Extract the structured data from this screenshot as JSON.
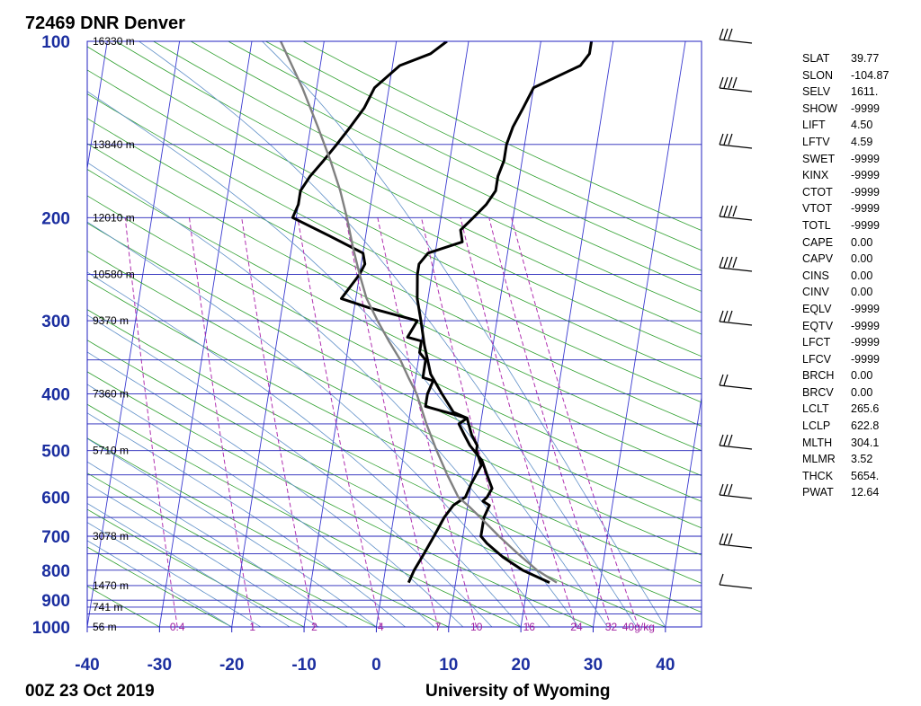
{
  "header": {
    "station": "72469 DNR Denver",
    "time": "00Z 23 Oct 2019",
    "source": "University of Wyoming"
  },
  "chart_data": {
    "type": "line",
    "x_axis": {
      "range": [
        -40,
        45
      ],
      "ticks": [
        -40,
        -30,
        -20,
        -10,
        0,
        10,
        20,
        30,
        40
      ]
    },
    "y_axis": {
      "log_scale": true,
      "range": [
        1000,
        100
      ],
      "ticks": [
        100,
        200,
        300,
        400,
        500,
        600,
        700,
        800,
        900,
        1000
      ]
    },
    "height_labels": [
      {
        "p": 100,
        "text": "16330 m"
      },
      {
        "p": 150,
        "text": "13840 m"
      },
      {
        "p": 200,
        "text": "12010 m"
      },
      {
        "p": 250,
        "text": "10580 m"
      },
      {
        "p": 300,
        "text": "9370 m"
      },
      {
        "p": 400,
        "text": "7360 m"
      },
      {
        "p": 500,
        "text": "5710 m"
      },
      {
        "p": 700,
        "text": "3078 m"
      },
      {
        "p": 850,
        "text": "1470 m"
      },
      {
        "p": 925,
        "text": "741 m"
      },
      {
        "p": 1000,
        "text": "56 m"
      }
    ],
    "mixing_ratio_labels": [
      {
        "w": 0.4,
        "text": "0.4"
      },
      {
        "w": 1,
        "text": "1"
      },
      {
        "w": 2,
        "text": "2"
      },
      {
        "w": 4,
        "text": "4"
      },
      {
        "w": 7,
        "text": "7"
      },
      {
        "w": 10,
        "text": "10"
      },
      {
        "w": 16,
        "text": "16"
      },
      {
        "w": 24,
        "text": "24"
      },
      {
        "w": 32,
        "text": "32"
      },
      {
        "w": 40,
        "text": "40g/kg"
      }
    ],
    "series": [
      {
        "color": "#000000",
        "points": [
          [
            100,
            -3
          ],
          [
            105,
            -5
          ],
          [
            110,
            -9
          ],
          [
            120,
            -12
          ],
          [
            130,
            -13
          ],
          [
            140,
            -14.5
          ],
          [
            150,
            -16
          ],
          [
            160,
            -17.5
          ],
          [
            170,
            -19
          ],
          [
            180,
            -20
          ],
          [
            190,
            -20
          ],
          [
            200,
            -20.5
          ],
          [
            215,
            -15
          ],
          [
            230,
            -10
          ],
          [
            240,
            -9.5
          ],
          [
            250,
            -10
          ],
          [
            275,
            -12
          ],
          [
            285,
            -8
          ],
          [
            300,
            -1
          ],
          [
            320,
            -2
          ],
          [
            325,
            0
          ],
          [
            340,
            0
          ],
          [
            350,
            1
          ],
          [
            375,
            1
          ],
          [
            380,
            2.5
          ],
          [
            400,
            2
          ],
          [
            420,
            2
          ],
          [
            440,
            8
          ],
          [
            470,
            9
          ],
          [
            490,
            10
          ],
          [
            500,
            10
          ],
          [
            530,
            11
          ],
          [
            570,
            10
          ],
          [
            600,
            9.5
          ],
          [
            620,
            8
          ],
          [
            650,
            7
          ],
          [
            700,
            6
          ],
          [
            750,
            5
          ],
          [
            800,
            4
          ],
          [
            840,
            3.5
          ]
        ]
      },
      {
        "color": "#000000",
        "points": [
          [
            100,
            17
          ],
          [
            105,
            17
          ],
          [
            110,
            16
          ],
          [
            120,
            10
          ],
          [
            130,
            9
          ],
          [
            140,
            8
          ],
          [
            150,
            7.5
          ],
          [
            160,
            7.5
          ],
          [
            170,
            7
          ],
          [
            180,
            7
          ],
          [
            190,
            6
          ],
          [
            200,
            4.5
          ],
          [
            210,
            3
          ],
          [
            220,
            3.5
          ],
          [
            230,
            -1
          ],
          [
            240,
            -2
          ],
          [
            250,
            -2
          ],
          [
            275,
            -1.5
          ],
          [
            300,
            -0.5
          ],
          [
            330,
            0.5
          ],
          [
            370,
            2
          ],
          [
            400,
            4
          ],
          [
            430,
            6
          ],
          [
            440,
            8
          ],
          [
            450,
            7
          ],
          [
            470,
            8
          ],
          [
            490,
            9
          ],
          [
            520,
            11
          ],
          [
            550,
            12
          ],
          [
            580,
            13
          ],
          [
            600,
            12.5
          ],
          [
            610,
            12
          ],
          [
            620,
            13
          ],
          [
            650,
            12.5
          ],
          [
            700,
            12.5
          ],
          [
            720,
            13.5
          ],
          [
            760,
            16
          ],
          [
            800,
            19
          ],
          [
            840,
            23
          ]
        ]
      },
      {
        "color": "#808080",
        "points": [
          [
            100,
            -26
          ],
          [
            120,
            -22
          ],
          [
            140,
            -19
          ],
          [
            160,
            -16.5
          ],
          [
            180,
            -14.5
          ],
          [
            200,
            -13
          ],
          [
            225,
            -11.5
          ],
          [
            250,
            -10
          ],
          [
            275,
            -8.5
          ],
          [
            300,
            -6.5
          ],
          [
            325,
            -4.5
          ],
          [
            350,
            -2.5
          ],
          [
            375,
            -1
          ],
          [
            400,
            0.5
          ],
          [
            450,
            2.5
          ],
          [
            500,
            4.5
          ],
          [
            550,
            6.5
          ],
          [
            600,
            8.5
          ],
          [
            622.8,
            10.2
          ],
          [
            650,
            12
          ],
          [
            700,
            15
          ],
          [
            750,
            18
          ],
          [
            800,
            21
          ],
          [
            840,
            24
          ]
        ]
      }
    ]
  },
  "station_params": [
    {
      "key": "SLAT",
      "value": "39.77"
    },
    {
      "key": "SLON",
      "value": "-104.87"
    },
    {
      "key": "SELV",
      "value": "1611."
    },
    {
      "key": "SHOW",
      "value": "-9999"
    },
    {
      "key": "LIFT",
      "value": "4.50"
    },
    {
      "key": "LFTV",
      "value": "4.59"
    },
    {
      "key": "SWET",
      "value": "-9999"
    },
    {
      "key": "KINX",
      "value": "-9999"
    },
    {
      "key": "CTOT",
      "value": "-9999"
    },
    {
      "key": "VTOT",
      "value": "-9999"
    },
    {
      "key": "TOTL",
      "value": "-9999"
    },
    {
      "key": "CAPE",
      "value": "0.00"
    },
    {
      "key": "CAPV",
      "value": "0.00"
    },
    {
      "key": "CINS",
      "value": "0.00"
    },
    {
      "key": "CINV",
      "value": "0.00"
    },
    {
      "key": "EQLV",
      "value": "-9999"
    },
    {
      "key": "EQTV",
      "value": "-9999"
    },
    {
      "key": "LFCT",
      "value": "-9999"
    },
    {
      "key": "LFCV",
      "value": "-9999"
    },
    {
      "key": "BRCH",
      "value": "0.00"
    },
    {
      "key": "BRCV",
      "value": "0.00"
    },
    {
      "key": "LCLT",
      "value": "265.6"
    },
    {
      "key": "LCLP",
      "value": "622.8"
    },
    {
      "key": "MLTH",
      "value": "304.1"
    },
    {
      "key": "MLMR",
      "value": "3.52"
    },
    {
      "key": "THCK",
      "value": "5654."
    },
    {
      "key": "PWAT",
      "value": "12.64"
    }
  ]
}
